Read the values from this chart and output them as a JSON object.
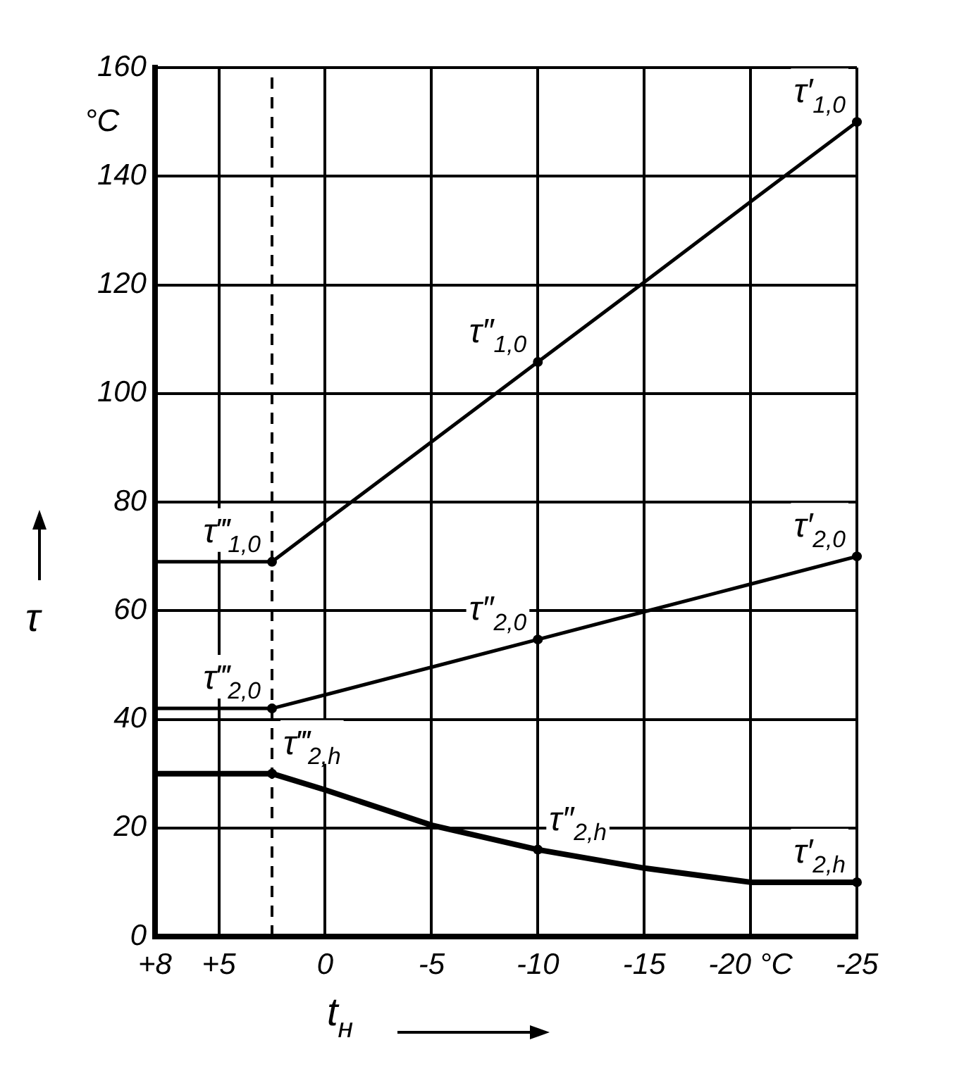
{
  "chart_data": {
    "type": "line",
    "xlabel": "t$_{н}$",
    "ylabel": "τ",
    "x": [
      8,
      2.5,
      0,
      -5,
      -10,
      -15,
      -20,
      -25
    ],
    "series": [
      {
        "color": "#000000",
        "values": [
          69,
          69,
          76.4,
          91.1,
          105.8,
          120.5,
          135.3,
          150
        ]
      },
      {
        "color": "#000000",
        "values": [
          42,
          42,
          44.5,
          49.6,
          54.7,
          59.8,
          64.9,
          70
        ]
      },
      {
        "color": "#000000",
        "values": [
          30,
          30,
          27,
          20.5,
          16,
          12.6,
          10,
          10
        ]
      }
    ],
    "xlim": [
      8,
      -25
    ],
    "xticks": [
      {
        "value": 8,
        "label": "+8"
      },
      {
        "value": 5,
        "label": "+5"
      },
      0,
      -5,
      -10,
      -15,
      {
        "value": -20,
        "label": "-20 °C"
      },
      -25
    ],
    "ylim": [
      0,
      160
    ],
    "yticks": [
      0,
      20,
      40,
      60,
      80,
      100,
      120,
      140,
      160
    ],
    "grid": true,
    "legend": false,
    "marker": "none",
    "line_style": "solid",
    "ref_lines": [
      {
        "axis": "x",
        "value": 2.5,
        "line_style": "dashed"
      }
    ],
    "annotations": [
      "°C",
      {
        "text": "τ′$_{1,0}$",
        "x": -25,
        "y": 150
      },
      {
        "text": "τ″$_{1,0}$",
        "x": -10,
        "y": 105.8
      },
      {
        "text": "τ‴$_{1,0}$",
        "x": 2.5,
        "y": 69
      },
      {
        "text": "τ′$_{2,0}$",
        "x": -25,
        "y": 70
      },
      {
        "text": "τ″$_{2,0}$",
        "x": -10,
        "y": 54.7
      },
      {
        "text": "τ‴$_{2,0}$",
        "x": 2.5,
        "y": 42
      },
      {
        "text": "τ′$_{2,h}$",
        "x": -25,
        "y": 10
      },
      {
        "text": "τ″$_{2,h}$",
        "x": -10,
        "y": 16
      },
      {
        "text": "τ‴$_{2,h}$",
        "x": 2.5,
        "y": 30
      }
    ]
  }
}
